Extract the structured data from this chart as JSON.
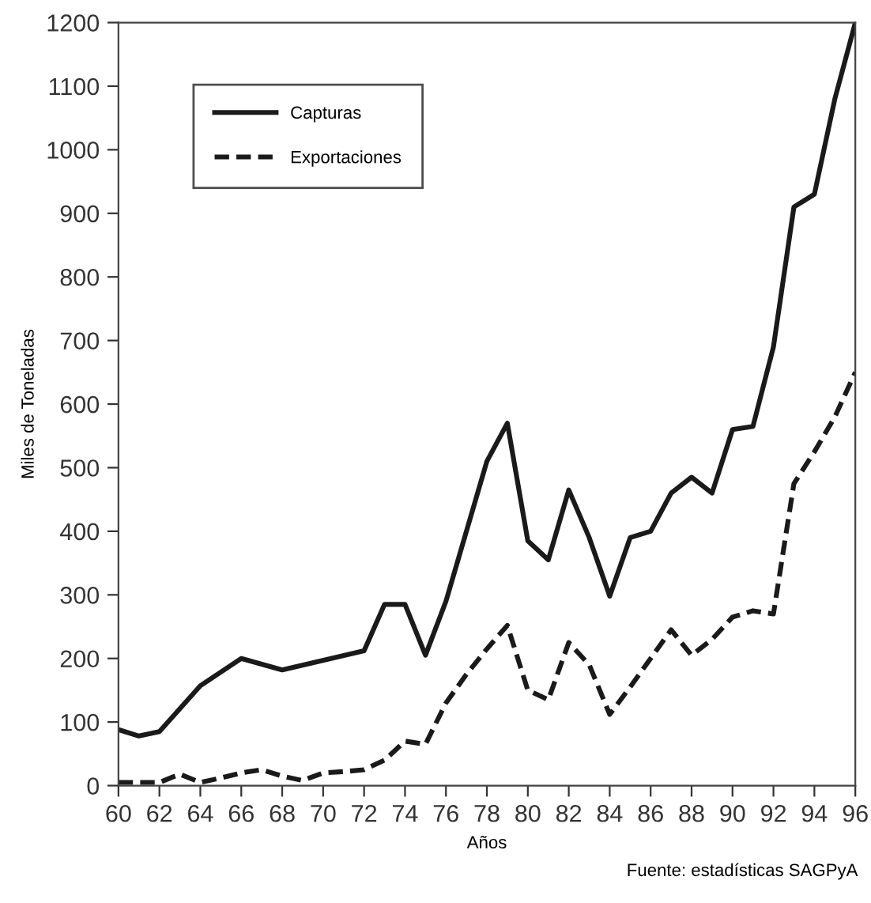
{
  "chart_data": {
    "type": "line",
    "xlabel": "Años",
    "ylabel": "Miles de Toneladas",
    "annotations": [
      "Fuente: estadísticas SAGPyA"
    ],
    "xlim": [
      60,
      96
    ],
    "xticks": [
      60,
      62,
      64,
      66,
      68,
      70,
      72,
      74,
      76,
      78,
      80,
      82,
      84,
      86,
      88,
      90,
      92,
      94,
      96
    ],
    "ylim": [
      0,
      1200
    ],
    "yticks": [
      0,
      100,
      200,
      300,
      400,
      500,
      600,
      700,
      800,
      900,
      1000,
      1100,
      1200
    ],
    "grid": false,
    "legend": "top left",
    "marker": "none",
    "series": [
      {
        "name": "Capturas",
        "color": "#1a1a1a",
        "line_style": "solid",
        "x": [
          60,
          61,
          62,
          64,
          66,
          68,
          72,
          73,
          74,
          75,
          76,
          78,
          79,
          80,
          81,
          82,
          83,
          84,
          85,
          86,
          87,
          88,
          89,
          90,
          91,
          92,
          93,
          94,
          95,
          96
        ],
        "values": [
          88,
          78,
          85,
          157,
          200,
          182,
          212,
          285,
          285,
          205,
          290,
          510,
          570,
          385,
          355,
          465,
          390,
          298,
          390,
          400,
          460,
          485,
          460,
          560,
          565,
          690,
          910,
          930,
          1080,
          1200
        ]
      },
      {
        "name": "Exportaciones",
        "color": "#1a1a1a",
        "line_style": "dashed",
        "x": [
          60,
          61,
          62,
          63,
          64,
          65,
          66,
          67,
          68,
          69,
          70,
          71,
          72,
          73,
          74,
          75,
          76,
          77,
          78,
          79,
          80,
          81,
          82,
          83,
          84,
          85,
          86,
          87,
          88,
          89,
          90,
          91,
          92,
          93,
          94,
          95,
          96
        ],
        "values": [
          5,
          5,
          5,
          18,
          5,
          12,
          20,
          25,
          15,
          8,
          20,
          22,
          25,
          40,
          70,
          65,
          130,
          175,
          215,
          252,
          150,
          135,
          225,
          190,
          112,
          155,
          200,
          245,
          205,
          230,
          265,
          275,
          270,
          475,
          525,
          580,
          650
        ]
      }
    ]
  }
}
